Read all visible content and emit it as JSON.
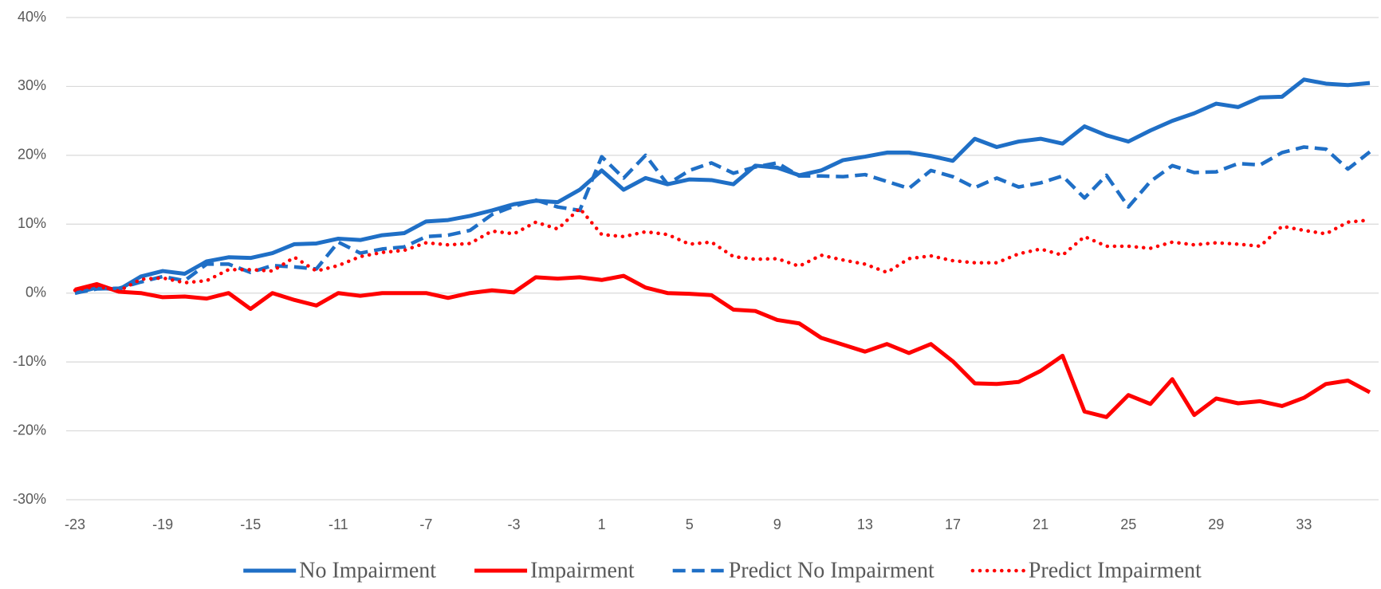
{
  "chart_data": {
    "type": "line",
    "x": [
      -23,
      -22,
      -21,
      -20,
      -19,
      -18,
      -17,
      -16,
      -15,
      -14,
      -13,
      -12,
      -11,
      -10,
      -9,
      -8,
      -7,
      -6,
      -5,
      -4,
      -3,
      -2,
      -1,
      0,
      1,
      2,
      3,
      4,
      5,
      6,
      7,
      8,
      9,
      10,
      11,
      12,
      13,
      14,
      15,
      16,
      17,
      18,
      19,
      20,
      21,
      22,
      23,
      24,
      25,
      26,
      27,
      28,
      29,
      30,
      31,
      32,
      33,
      34,
      35,
      36
    ],
    "xlim": [
      -23.4,
      36.4
    ],
    "xticks": [
      -23,
      -19,
      -15,
      -11,
      -7,
      -3,
      1,
      5,
      9,
      13,
      17,
      21,
      25,
      29,
      33
    ],
    "ylim": [
      -30,
      40
    ],
    "yticks": [
      {
        "value": -30,
        "label": "-30%"
      },
      {
        "value": -20,
        "label": "-20%"
      },
      {
        "value": -10,
        "label": "-10%"
      },
      {
        "value": 0,
        "label": "0%"
      },
      {
        "value": 10,
        "label": "10%"
      },
      {
        "value": 20,
        "label": "20%"
      },
      {
        "value": 30,
        "label": "30%"
      },
      {
        "value": 40,
        "label": "40%"
      }
    ],
    "grid": true,
    "legend": "bottom",
    "series": [
      {
        "name": "No Impairment",
        "color": "#1f6fc6",
        "dash": "solid",
        "values": [
          0,
          0.8,
          0.5,
          2.4,
          3.2,
          2.8,
          4.6,
          5.2,
          5.1,
          5.8,
          7.1,
          7.2,
          7.9,
          7.7,
          8.4,
          8.7,
          10.4,
          10.6,
          11.2,
          12,
          12.9,
          13.4,
          13.2,
          15,
          17.8,
          15,
          16.7,
          15.8,
          16.5,
          16.4,
          15.8,
          18.5,
          18.2,
          17.1,
          17.8,
          19.3,
          19.8,
          20.4,
          20.4,
          19.9,
          19.2,
          22.4,
          21.2,
          22,
          22.4,
          21.7,
          24.2,
          22.9,
          22,
          23.6,
          25,
          26.1,
          27.5,
          27,
          28.4,
          28.5,
          31,
          30.4,
          30.2,
          30.5
        ]
      },
      {
        "name": "Impairment",
        "color": "#ff0000",
        "dash": "solid",
        "values": [
          0.5,
          1.3,
          0.2,
          0,
          -0.6,
          -0.5,
          -0.8,
          0,
          -2.3,
          0,
          -1,
          -1.8,
          0,
          -0.4,
          0,
          0,
          0,
          -0.7,
          0,
          0.4,
          0.1,
          2.3,
          2.1,
          2.3,
          1.9,
          2.5,
          0.8,
          0,
          -0.1,
          -0.3,
          -2.4,
          -2.6,
          -3.9,
          -4.4,
          -6.5,
          -7.5,
          -8.5,
          -7.4,
          -8.7,
          -7.4,
          -9.9,
          -13.1,
          -13.2,
          -12.9,
          -11.3,
          -9.1,
          -17.2,
          -18,
          -14.8,
          -16.1,
          -12.5,
          -17.7,
          -15.3,
          -16,
          -15.7,
          -16.4,
          -15.2,
          -13.2,
          -12.7,
          -14.4
        ]
      },
      {
        "name": "Predict No Impairment",
        "color": "#1f6fc6",
        "dash": "dashed",
        "values": [
          0,
          0.6,
          0.7,
          1.6,
          2.4,
          1.8,
          4.2,
          4.2,
          3,
          4,
          3.8,
          3.5,
          7.4,
          5.8,
          6.4,
          6.7,
          8.2,
          8.4,
          9.1,
          11.4,
          12.6,
          13.5,
          12.5,
          12,
          19.8,
          16.7,
          20,
          15.8,
          17.8,
          18.9,
          17.4,
          18.3,
          18.9,
          17,
          17,
          16.9,
          17.2,
          16.2,
          15.2,
          17.8,
          16.9,
          15.3,
          16.7,
          15.4,
          16,
          17,
          13.8,
          17.1,
          12.5,
          16.2,
          18.5,
          17.5,
          17.6,
          18.8,
          18.6,
          20.4,
          21.2,
          20.9,
          18,
          20.5
        ]
      },
      {
        "name": "Predict Impairment",
        "color": "#ff0000",
        "dash": "dotted",
        "values": [
          0.4,
          1,
          0.3,
          2,
          2.2,
          1.5,
          1.8,
          3.4,
          3.4,
          3.2,
          5.2,
          3.2,
          4,
          5.3,
          5.9,
          6.2,
          7.3,
          7,
          7.2,
          9,
          8.6,
          10.3,
          9.3,
          12.3,
          8.5,
          8.2,
          8.9,
          8.5,
          7.1,
          7.4,
          5.3,
          4.9,
          5,
          3.9,
          5.5,
          4.8,
          4.2,
          3,
          5,
          5.4,
          4.7,
          4.4,
          4.4,
          5.7,
          6.4,
          5.5,
          8.2,
          6.8,
          6.8,
          6.5,
          7.4,
          7,
          7.3,
          7.1,
          6.8,
          9.7,
          9.1,
          8.6,
          10.3,
          10.6
        ]
      }
    ]
  }
}
